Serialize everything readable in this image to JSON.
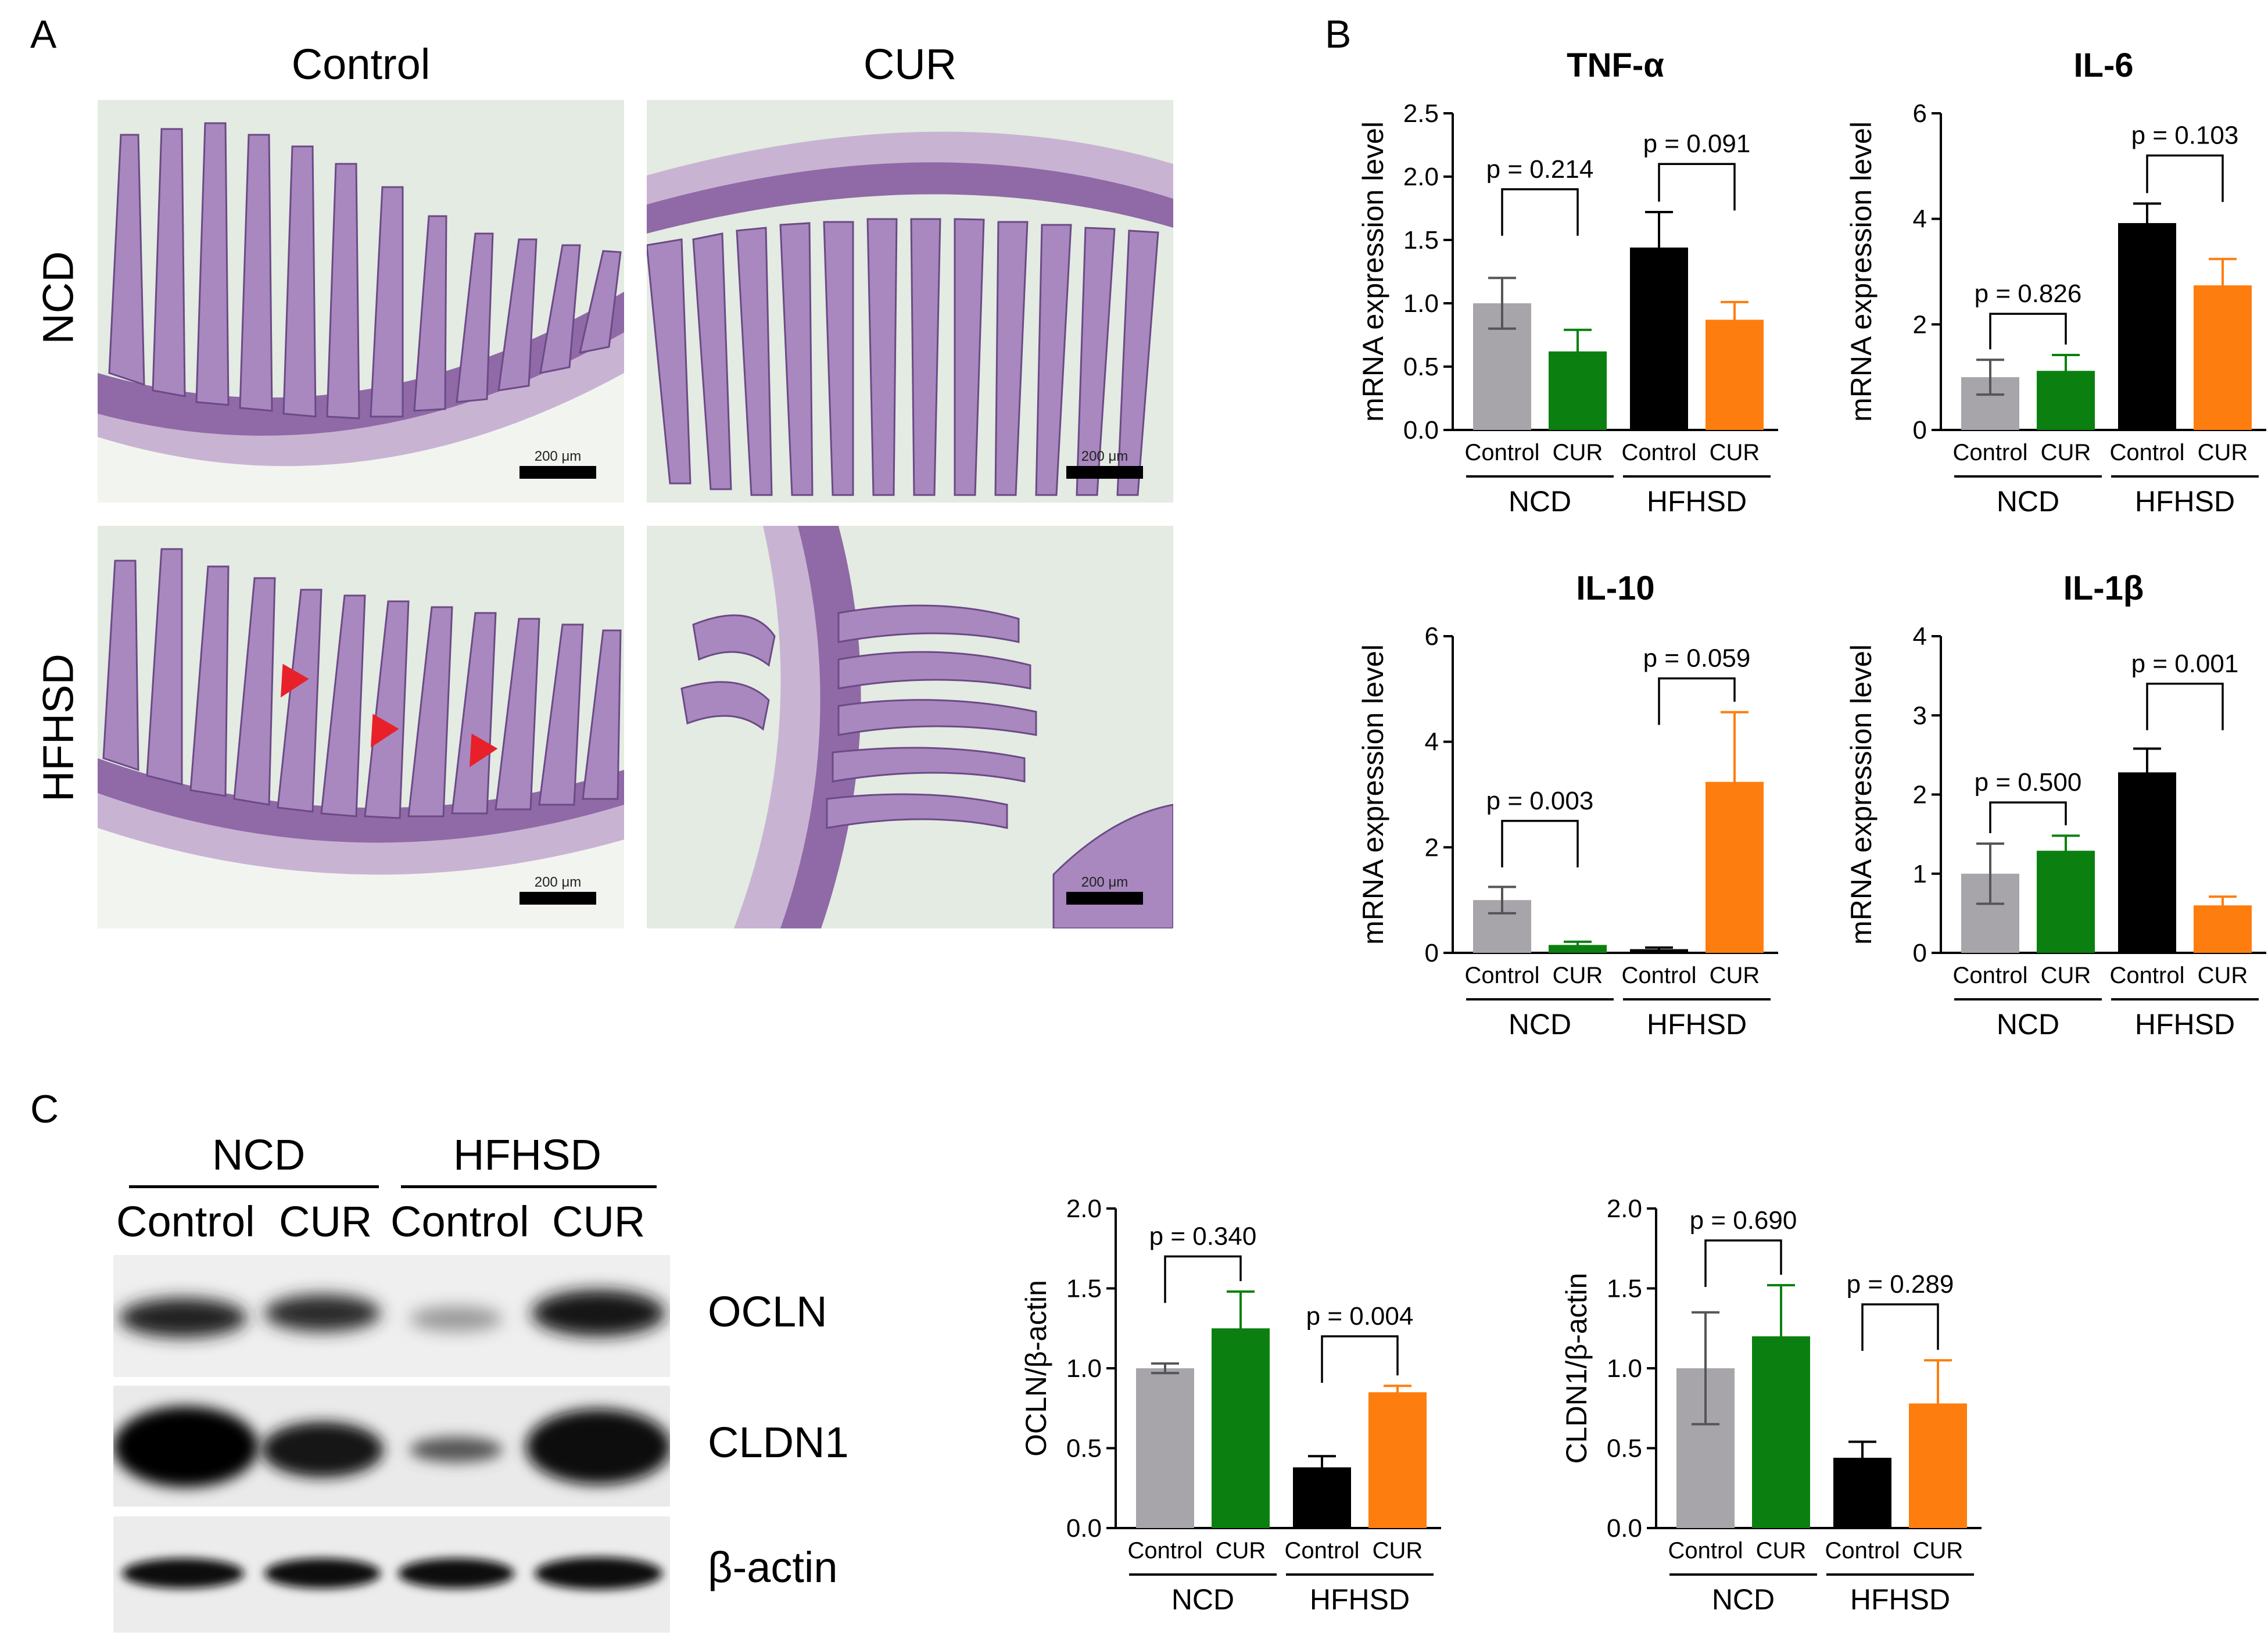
{
  "panels": {
    "a": {
      "letter": "A",
      "col_headers": [
        "Control",
        "CUR"
      ],
      "row_labels": [
        "NCD",
        "HFHSD"
      ],
      "scale_text": "200 μm"
    },
    "b": {
      "letter": "B"
    },
    "c": {
      "letter": "C",
      "group_labels": [
        "NCD",
        "HFHSD"
      ],
      "lane_labels": [
        "Control",
        "CUR",
        "Control",
        "CUR"
      ],
      "band_labels": [
        "OCLN",
        "CLDN1",
        "β-actin"
      ]
    }
  },
  "colors": {
    "control_ncd": "#a7a5aa",
    "cur_ncd": "#0b8010",
    "control_hfhsd": "#000000",
    "cur_hfhsd": "#fd7e0e",
    "arrow": "#e8202a"
  },
  "chart_data": [
    {
      "id": "tnf",
      "type": "bar",
      "title": "TNF-α",
      "ylabel": "mRNA expression level",
      "categories": [
        "Control",
        "CUR",
        "Control",
        "CUR"
      ],
      "groups": [
        "NCD",
        "HFHSD"
      ],
      "values": [
        1.0,
        0.62,
        1.44,
        0.87
      ],
      "errors": [
        0.2,
        0.17,
        0.28,
        0.14
      ],
      "ylim": [
        0,
        2.5
      ],
      "yticks": [
        "0.0",
        "0.5",
        "1.0",
        "1.5",
        "2.0",
        "2.5"
      ],
      "yticks_values": [
        0,
        0.5,
        1.0,
        1.5,
        2.0,
        2.5
      ],
      "comparisons": [
        {
          "from": 0,
          "to": 1,
          "label": "p = 0.214",
          "level": 1.9
        },
        {
          "from": 2,
          "to": 3,
          "label": "p = 0.091",
          "level": 2.1
        }
      ]
    },
    {
      "id": "il6",
      "type": "bar",
      "title": "IL-6",
      "ylabel": "mRNA expression level",
      "categories": [
        "Control",
        "CUR",
        "Control",
        "CUR"
      ],
      "groups": [
        "NCD",
        "HFHSD"
      ],
      "values": [
        1.0,
        1.12,
        3.92,
        2.74
      ],
      "errors": [
        0.33,
        0.3,
        0.37,
        0.5
      ],
      "ylim": [
        0,
        6
      ],
      "yticks": [
        "0",
        "2",
        "4",
        "6"
      ],
      "yticks_values": [
        0,
        2,
        4,
        6
      ],
      "comparisons": [
        {
          "from": 0,
          "to": 1,
          "label": "p = 0.826",
          "level": 2.2
        },
        {
          "from": 2,
          "to": 3,
          "label": "p = 0.103",
          "level": 5.2
        }
      ]
    },
    {
      "id": "il10",
      "type": "bar",
      "title": "IL-10",
      "ylabel": "mRNA expression level",
      "categories": [
        "Control",
        "CUR",
        "Control",
        "CUR"
      ],
      "groups": [
        "NCD",
        "HFHSD"
      ],
      "values": [
        1.0,
        0.15,
        0.07,
        3.24
      ],
      "errors": [
        0.25,
        0.06,
        0.03,
        1.32
      ],
      "ylim": [
        0,
        6
      ],
      "yticks": [
        "0",
        "2",
        "4",
        "6"
      ],
      "yticks_values": [
        0,
        2,
        4,
        6
      ],
      "comparisons": [
        {
          "from": 0,
          "to": 1,
          "label": "p = 0.003",
          "level": 2.5
        },
        {
          "from": 2,
          "to": 3,
          "label": "p = 0.059",
          "level": 5.2
        }
      ]
    },
    {
      "id": "il1b",
      "type": "bar",
      "title": "IL-1β",
      "ylabel": "mRNA expression level",
      "categories": [
        "Control",
        "CUR",
        "Control",
        "CUR"
      ],
      "groups": [
        "NCD",
        "HFHSD"
      ],
      "values": [
        1.0,
        1.29,
        2.28,
        0.6
      ],
      "errors": [
        0.38,
        0.19,
        0.3,
        0.11
      ],
      "ylim": [
        0,
        4
      ],
      "yticks": [
        "0",
        "1",
        "2",
        "3",
        "4"
      ],
      "yticks_values": [
        0,
        1,
        2,
        3,
        4
      ],
      "comparisons": [
        {
          "from": 0,
          "to": 1,
          "label": "p = 0.500",
          "level": 1.9
        },
        {
          "from": 2,
          "to": 3,
          "label": "p = 0.001",
          "level": 3.4
        }
      ]
    },
    {
      "id": "ocln",
      "type": "bar",
      "title": "",
      "ylabel": "OCLN/β-actin",
      "categories": [
        "Control",
        "CUR",
        "Control",
        "CUR"
      ],
      "groups": [
        "NCD",
        "HFHSD"
      ],
      "values": [
        1.0,
        1.25,
        0.38,
        0.85
      ],
      "errors": [
        0.03,
        0.23,
        0.07,
        0.04
      ],
      "ylim": [
        0,
        2.0
      ],
      "yticks": [
        "0.0",
        "0.5",
        "1.0",
        "1.5",
        "2.0"
      ],
      "yticks_values": [
        0,
        0.5,
        1.0,
        1.5,
        2.0
      ],
      "comparisons": [
        {
          "from": 0,
          "to": 1,
          "label": "p = 0.340",
          "level": 1.7
        },
        {
          "from": 2,
          "to": 3,
          "label": "p = 0.004",
          "level": 1.2
        }
      ]
    },
    {
      "id": "cldn1",
      "type": "bar",
      "title": "",
      "ylabel": "CLDN1/β-actin",
      "categories": [
        "Control",
        "CUR",
        "Control",
        "CUR"
      ],
      "groups": [
        "NCD",
        "HFHSD"
      ],
      "values": [
        1.0,
        1.2,
        0.44,
        0.78
      ],
      "errors": [
        0.35,
        0.32,
        0.1,
        0.27
      ],
      "ylim": [
        0,
        2.0
      ],
      "yticks": [
        "0.0",
        "0.5",
        "1.0",
        "1.5",
        "2.0"
      ],
      "yticks_values": [
        0,
        0.5,
        1.0,
        1.5,
        2.0
      ],
      "comparisons": [
        {
          "from": 0,
          "to": 1,
          "label": "p = 0.690",
          "level": 1.8
        },
        {
          "from": 2,
          "to": 3,
          "label": "p = 0.289",
          "level": 1.4
        }
      ]
    }
  ]
}
